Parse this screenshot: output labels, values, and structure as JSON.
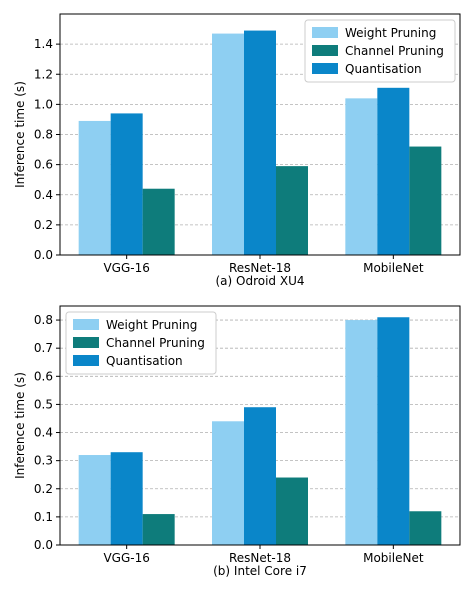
{
  "colors": {
    "weight_pruning": "#8ecff2",
    "channel_pruning": "#0e7c7b",
    "quantisation": "#0a86c9"
  },
  "chart_data": [
    {
      "type": "bar",
      "caption": "(a) Odroid XU4",
      "ylabel": "Inference time (s)",
      "xlabel": "",
      "categories": [
        "VGG-16",
        "ResNet-18",
        "MobileNet"
      ],
      "ylim": [
        0,
        1.6
      ],
      "yticks": [
        0.0,
        0.2,
        0.4,
        0.6,
        0.8,
        1.0,
        1.2,
        1.4
      ],
      "ytick_labels": [
        "0.0",
        "0.2",
        "0.4",
        "0.6",
        "0.8",
        "1.0",
        "1.2",
        "1.4"
      ],
      "grid": true,
      "legend": "top-right",
      "series": [
        {
          "name": "Weight Pruning",
          "values": [
            0.89,
            1.47,
            1.04
          ]
        },
        {
          "name": "Quantisation",
          "values": [
            0.94,
            1.49,
            1.11
          ]
        },
        {
          "name": "Channel Pruning",
          "values": [
            0.44,
            0.59,
            0.72
          ]
        }
      ],
      "legend_order": [
        "Weight Pruning",
        "Channel Pruning",
        "Quantisation"
      ]
    },
    {
      "type": "bar",
      "caption": "(b) Intel Core i7",
      "ylabel": "Inference time (s)",
      "xlabel": "",
      "categories": [
        "VGG-16",
        "ResNet-18",
        "MobileNet"
      ],
      "ylim": [
        0,
        0.85
      ],
      "yticks": [
        0.0,
        0.1,
        0.2,
        0.3,
        0.4,
        0.5,
        0.6,
        0.7,
        0.8
      ],
      "ytick_labels": [
        "0.0",
        "0.1",
        "0.2",
        "0.3",
        "0.4",
        "0.5",
        "0.6",
        "0.7",
        "0.8"
      ],
      "grid": true,
      "legend": "top-left",
      "series": [
        {
          "name": "Weight Pruning",
          "values": [
            0.32,
            0.44,
            0.8
          ]
        },
        {
          "name": "Quantisation",
          "values": [
            0.33,
            0.49,
            0.81
          ]
        },
        {
          "name": "Channel Pruning",
          "values": [
            0.11,
            0.24,
            0.12
          ]
        }
      ],
      "legend_order": [
        "Weight Pruning",
        "Channel Pruning",
        "Quantisation"
      ]
    }
  ]
}
